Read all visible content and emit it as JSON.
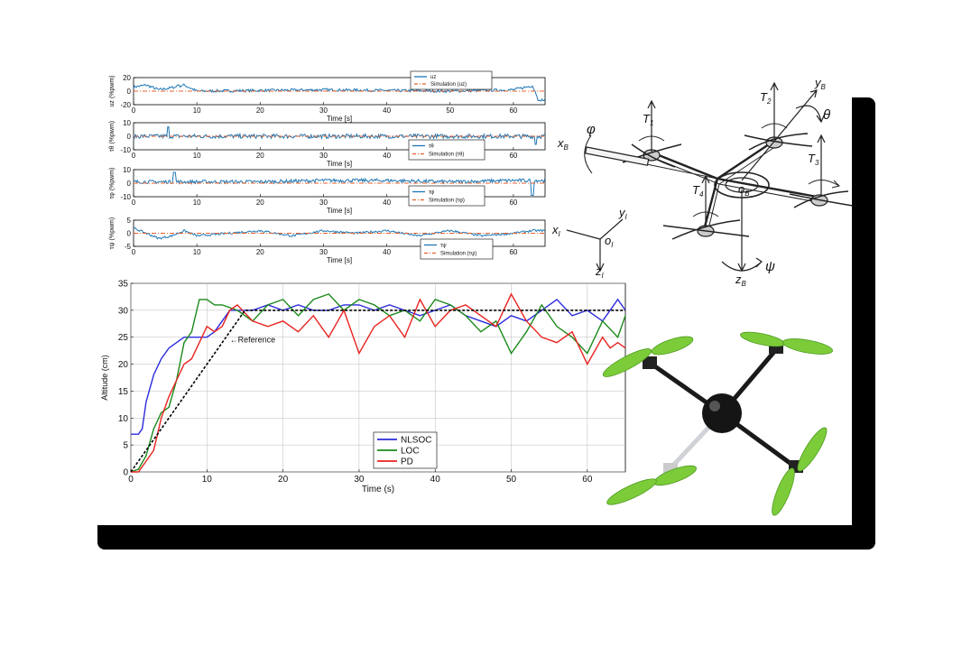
{
  "chart_data": [
    {
      "type": "line",
      "ylabel": "uz (%pwm)",
      "xlabel": "Time [s]",
      "xticks": [
        0,
        10,
        20,
        30,
        40,
        50,
        60
      ],
      "yticks": [
        -20,
        0,
        20
      ],
      "xlim": [
        0,
        65
      ],
      "ylim": [
        -20,
        20
      ],
      "series": [
        {
          "name": "uz",
          "color": "#1f77b4",
          "style": "solid",
          "noise": 2.0,
          "spikes": [
            [
              7,
              9
            ],
            [
              64,
              -14
            ]
          ],
          "x": [
            0,
            2,
            4,
            6,
            8,
            10,
            20,
            30,
            40,
            50,
            60,
            63,
            64,
            65
          ],
          "y": [
            6,
            9,
            2,
            5,
            9,
            0,
            1,
            2,
            1,
            0,
            2,
            8,
            -12,
            -14
          ]
        },
        {
          "name": "Simulation (uz)",
          "color": "#e8602c",
          "style": "dashdot",
          "x": [
            0,
            65
          ],
          "y": [
            0,
            0
          ]
        }
      ],
      "legend": {
        "position": "top-right",
        "entries": [
          "uz",
          "Simulation  (uz)"
        ]
      }
    },
    {
      "type": "line",
      "ylabel": "τθ (%pwm)",
      "xlabel": "Time [s]",
      "xticks": [
        0,
        10,
        20,
        30,
        40,
        50,
        60
      ],
      "yticks": [
        -10,
        0,
        10
      ],
      "xlim": [
        0,
        65
      ],
      "ylim": [
        -10,
        10
      ],
      "series": [
        {
          "name": "τθ",
          "color": "#1f77b4",
          "style": "solid",
          "noise": 1.6,
          "spikes": [
            [
              5.5,
              7
            ],
            [
              63.5,
              -6
            ]
          ],
          "x": [
            0,
            10,
            20,
            30,
            40,
            50,
            60,
            65
          ],
          "y": [
            0,
            0,
            0,
            0,
            0,
            0,
            0,
            0
          ]
        },
        {
          "name": "Simulation (τθ)",
          "color": "#e8602c",
          "style": "dashdot",
          "x": [
            0,
            65
          ],
          "y": [
            0,
            0
          ]
        }
      ],
      "legend": {
        "position": "bottom-right",
        "entries": [
          "τθ",
          "Simulation (τθ)"
        ]
      }
    },
    {
      "type": "line",
      "ylabel": "τφ (%pwm)",
      "xlabel": "Time [s]",
      "xticks": [
        0,
        10,
        20,
        30,
        40,
        50,
        60
      ],
      "yticks": [
        -10,
        0,
        10
      ],
      "xlim": [
        0,
        65
      ],
      "ylim": [
        -10,
        10
      ],
      "series": [
        {
          "name": "τφ",
          "color": "#1f77b4",
          "style": "solid",
          "noise": 1.3,
          "spikes": [
            [
              6.5,
              8
            ],
            [
              63,
              -9
            ]
          ],
          "x": [
            0,
            10,
            20,
            30,
            40,
            50,
            60,
            65
          ],
          "y": [
            1,
            1,
            1,
            2,
            2,
            1,
            2,
            2
          ]
        },
        {
          "name": "Simulation (τφ)",
          "color": "#e8602c",
          "style": "dashdot",
          "x": [
            0,
            65
          ],
          "y": [
            0,
            0
          ]
        }
      ],
      "legend": {
        "position": "bottom-right",
        "entries": [
          "τφ",
          "Simulation (τφ)"
        ]
      }
    },
    {
      "type": "line",
      "ylabel": "τψ (%pwm)",
      "xlabel": "Time [s]",
      "xticks": [
        0,
        10,
        20,
        30,
        40,
        50,
        60
      ],
      "yticks": [
        -5,
        0,
        5
      ],
      "xlim": [
        0,
        65
      ],
      "ylim": [
        -5,
        5
      ],
      "series": [
        {
          "name": "τψ",
          "color": "#1f77b4",
          "style": "solid",
          "noise": 0.4,
          "spikes": [],
          "x": [
            0,
            2,
            4,
            6,
            8,
            10,
            15,
            20,
            25,
            30,
            35,
            40,
            45,
            50,
            55,
            60,
            63,
            65
          ],
          "y": [
            2,
            0,
            -2,
            -1,
            1,
            -1,
            0,
            1,
            -1,
            1,
            0,
            1,
            -1,
            1,
            -1,
            0,
            1,
            1
          ]
        },
        {
          "name": "Simulation (τψ)",
          "color": "#e8602c",
          "style": "dashdot",
          "x": [
            0,
            65
          ],
          "y": [
            0,
            0
          ]
        }
      ],
      "legend": {
        "position": "bottom-right",
        "entries": [
          "τψ",
          "Simulation (τψ)"
        ]
      }
    },
    {
      "type": "line",
      "xlabel": "Time (s)",
      "ylabel": "Altitude (cm)",
      "xticks": [
        0,
        10,
        20,
        30,
        40,
        50,
        60
      ],
      "yticks": [
        0,
        5,
        10,
        15,
        20,
        25,
        30,
        35
      ],
      "xlim": [
        0,
        65
      ],
      "ylim": [
        0,
        35
      ],
      "grid": true,
      "annotation": {
        "text": "←Reference",
        "x": 13,
        "y": 24
      },
      "series": [
        {
          "name": "NLSOC",
          "color": "#2b2bdd",
          "x": [
            0,
            1,
            1.5,
            2,
            3,
            4,
            5,
            6,
            7,
            8,
            9,
            10,
            11,
            12,
            13,
            14,
            16,
            18,
            20,
            22,
            24,
            26,
            28,
            30,
            32,
            34,
            36,
            38,
            40,
            42,
            44,
            46,
            48,
            50,
            52,
            54,
            56,
            58,
            60,
            62,
            64,
            65
          ],
          "y": [
            7,
            7,
            8,
            13,
            18,
            21,
            23,
            24,
            25,
            25,
            25,
            25,
            26,
            28,
            30,
            30,
            30,
            31,
            30,
            31,
            30,
            30,
            31,
            31,
            30,
            31,
            30,
            29,
            30,
            31,
            29,
            28,
            27,
            29,
            28,
            30,
            32,
            29,
            30,
            28,
            32,
            30
          ]
        },
        {
          "name": "LOC",
          "color": "#1b8a1b",
          "x": [
            0,
            1,
            2,
            3,
            4,
            5,
            6,
            7,
            8,
            9,
            10,
            11,
            12,
            14,
            16,
            18,
            20,
            22,
            24,
            26,
            28,
            30,
            32,
            34,
            36,
            38,
            40,
            42,
            44,
            46,
            48,
            50,
            52,
            54,
            56,
            58,
            60,
            62,
            64,
            65
          ],
          "y": [
            0,
            0.5,
            3,
            8,
            11,
            12,
            17,
            24,
            26,
            32,
            32,
            31,
            31,
            30,
            28,
            31,
            32,
            29,
            32,
            33,
            30,
            32,
            31,
            29,
            30,
            28,
            32,
            31,
            29,
            26,
            28,
            22,
            26,
            31,
            27,
            25,
            22,
            28,
            25,
            29
          ]
        },
        {
          "name": "PD",
          "color": "#e8231f",
          "x": [
            0,
            1,
            2,
            3,
            4,
            5,
            6,
            7,
            8,
            9,
            10,
            11,
            12,
            13,
            14,
            16,
            18,
            20,
            22,
            24,
            26,
            28,
            30,
            32,
            34,
            36,
            38,
            40,
            42,
            44,
            46,
            48,
            50,
            52,
            54,
            56,
            58,
            60,
            62,
            63,
            64,
            65
          ],
          "y": [
            0,
            0,
            2,
            4,
            10,
            14,
            17,
            20,
            21,
            24,
            27,
            26,
            27,
            30,
            31,
            28,
            27,
            28,
            26,
            29,
            25,
            30,
            22,
            27,
            29,
            25,
            32,
            27,
            30,
            31,
            29,
            27,
            33,
            28,
            25,
            24,
            26,
            20,
            25,
            23,
            24,
            23
          ]
        },
        {
          "name": "Reference",
          "color": "#000000",
          "style": "dashed",
          "x": [
            0,
            15,
            65
          ],
          "y": [
            0,
            30,
            30
          ]
        }
      ],
      "legend": {
        "position": "bottom-center",
        "entries": [
          "NLSOC",
          "LOC",
          "PD"
        ]
      }
    }
  ],
  "diagram": {
    "labels": {
      "T1": "T",
      "T1_sub": "1",
      "T2": "T",
      "T2_sub": "2",
      "T3": "T",
      "T3_sub": "3",
      "T4": "T",
      "T4_sub": "4",
      "phi": "φ",
      "theta": "θ",
      "psi": "ψ",
      "xB": "x",
      "xB_sub": "B",
      "yB": "y",
      "yB_sub": "B",
      "zB": "z",
      "zB_sub": "B",
      "oB": "o",
      "oB_sub": "B",
      "xI": "x",
      "xI_sub": "I",
      "yI": "y",
      "yI_sub": "I",
      "zI": "z",
      "zI_sub": "I",
      "oI": "o",
      "oI_sub": "I"
    }
  },
  "photo": {
    "frame_color": "#1a1a1a",
    "prop_color": "#7ccc3a"
  }
}
